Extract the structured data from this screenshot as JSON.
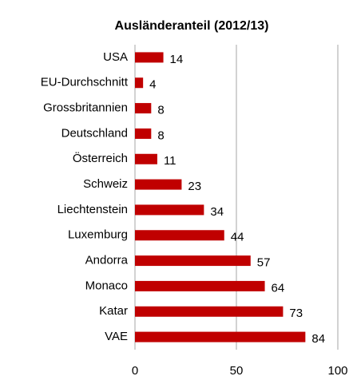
{
  "chart_data": {
    "type": "bar",
    "orientation": "horizontal",
    "title": "Ausländeranteil (2012/13)",
    "categories": [
      "USA",
      "EU-Durchschnitt",
      "Grossbritannien",
      "Deutschland",
      "Österreich",
      "Schweiz",
      "Liechtenstein",
      "Luxemburg",
      "Andorra",
      "Monaco",
      "Katar",
      "VAE"
    ],
    "values": [
      14,
      4,
      8,
      8,
      11,
      23,
      34,
      44,
      57,
      64,
      73,
      84
    ],
    "color": "#c00000",
    "xlim": [
      0,
      100
    ],
    "xticks": [
      0,
      50,
      100
    ],
    "grid": true
  }
}
